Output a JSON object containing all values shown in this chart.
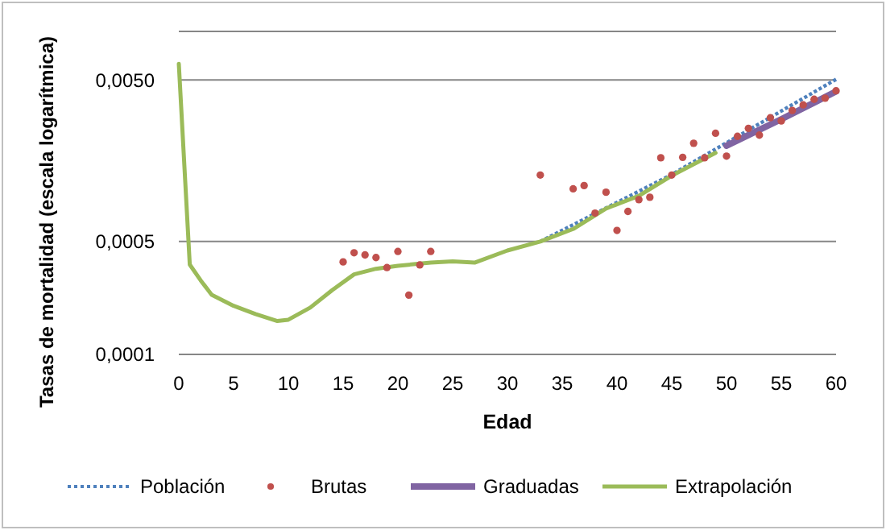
{
  "chart_data": {
    "type": "line",
    "xlabel": "Edad",
    "ylabel": "Tasas de mortalidad (escala logarítmica)",
    "log": "y",
    "grid": "y",
    "legend": "bottom",
    "xlim": [
      0,
      60
    ],
    "xticks": [
      0,
      5,
      10,
      15,
      20,
      25,
      30,
      35,
      40,
      45,
      50,
      55,
      60
    ],
    "ylim": [
      0.0001,
      0.01
    ],
    "yticks": [
      {
        "value": 0.0001,
        "label": "0,0001"
      },
      {
        "value": 0.0005,
        "label": "0,0005"
      },
      {
        "value": 0.005,
        "label": "0,0050"
      },
      {
        "value": 0.01,
        "label": null
      }
    ],
    "series": [
      {
        "name": "Población",
        "line_style": "dotted",
        "color": "#4f81bd",
        "x": [
          33,
          45,
          60
        ],
        "values": [
          0.0005,
          0.0013,
          0.00505
        ]
      },
      {
        "name": "Brutas",
        "type": "scatter",
        "marker": "circle",
        "color": "#c0504d",
        "x": [
          15,
          16,
          17,
          18,
          19,
          20,
          21,
          22,
          23,
          33,
          36,
          37,
          38,
          39,
          40,
          41,
          42,
          43,
          44,
          45,
          46,
          47,
          48,
          49,
          50,
          51,
          52,
          53,
          54,
          55,
          56,
          57,
          58,
          59,
          60
        ],
        "values": [
          0.000374,
          0.000426,
          0.000413,
          0.000398,
          0.000345,
          0.000434,
          0.000233,
          0.000358,
          0.000434,
          0.00129,
          0.00106,
          0.00111,
          0.00075,
          0.00101,
          0.000586,
          0.000768,
          0.000908,
          0.00094,
          0.00165,
          0.00129,
          0.00166,
          0.00203,
          0.00165,
          0.00234,
          0.00169,
          0.00224,
          0.00251,
          0.00228,
          0.00292,
          0.00279,
          0.00324,
          0.00351,
          0.0038,
          0.00386,
          0.00429
        ]
      },
      {
        "name": "Graduadas",
        "line_style": "solid",
        "color": "#8064a2",
        "x": [
          50,
          55,
          60
        ],
        "values": [
          0.00196,
          0.00286,
          0.00425
        ]
      },
      {
        "name": "Extrapolación",
        "line_style": "solid",
        "color": "#9bbb59",
        "x": [
          0,
          1,
          2,
          3,
          5,
          7,
          9,
          10,
          12,
          14,
          16,
          18,
          20,
          23,
          25,
          27,
          30,
          33,
          36,
          39,
          42,
          45,
          49
        ],
        "values": [
          0.0063,
          0.00036,
          0.000287,
          0.000234,
          0.0002,
          0.000178,
          0.000161,
          0.000164,
          0.000195,
          0.00025,
          0.000313,
          0.000339,
          0.000354,
          0.00037,
          0.000377,
          0.00037,
          0.00044,
          0.0005,
          0.000598,
          0.0008,
          0.00096,
          0.00128,
          0.00177
        ]
      }
    ]
  }
}
